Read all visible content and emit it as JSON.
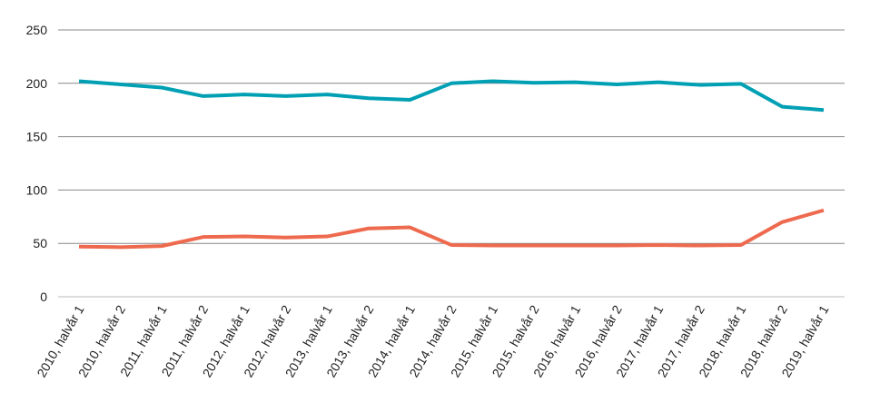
{
  "chart_data": {
    "type": "line",
    "title": "",
    "xlabel": "",
    "ylabel": "",
    "ylim": [
      0,
      250
    ],
    "yticks": [
      0,
      50,
      100,
      150,
      200,
      250
    ],
    "grid": true,
    "legend": "none",
    "categories": [
      "2010, halvår 1",
      "2010, halvår 2",
      "2011, halvår 1",
      "2011, halvår 2",
      "2012, halvår 1",
      "2012, halvår 2",
      "2013, halvår 1",
      "2013, halvår 2",
      "2014, halvår 1",
      "2014, halvår 2",
      "2015, halvår 1",
      "2015, halvår 2",
      "2016, halvår 1",
      "2016, halvår 2",
      "2017, halvår 1",
      "2017, halvår 2",
      "2018, halvår 1",
      "2018, halvår 2",
      "2019, halvår 1"
    ],
    "series": [
      {
        "color": "#00A0B4",
        "values": [
          202,
          199,
          196,
          188,
          189.5,
          188,
          189.5,
          186,
          184.5,
          200,
          202,
          200.5,
          201,
          199,
          201,
          198.5,
          199.5,
          178,
          175
        ]
      },
      {
        "color": "#EE6A4E",
        "values": [
          47,
          46.5,
          47.5,
          56,
          56.5,
          55.5,
          56.5,
          64,
          65,
          48.5,
          48,
          48,
          48,
          48,
          48.5,
          48,
          48.5,
          70,
          81
        ]
      }
    ]
  }
}
